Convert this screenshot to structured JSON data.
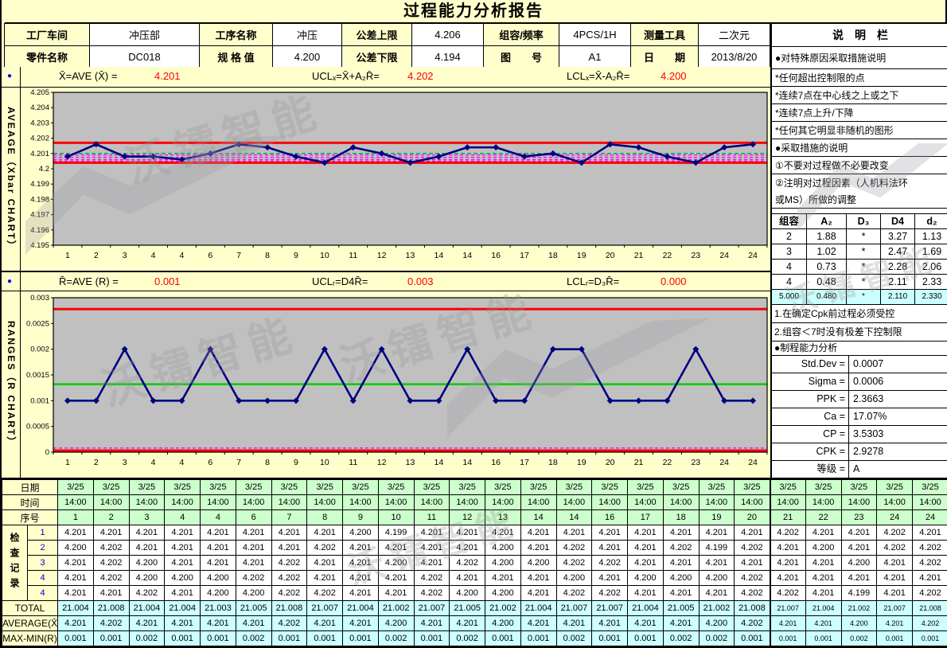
{
  "title": "过程能力分析报告",
  "watermark_text": "沃镭智能",
  "colors": {
    "accent_red": "#FF0000",
    "header_label_bg": "#FFFFCC",
    "green_row_bg": "#CCFFCC",
    "cyan_row_bg": "#CCFFFF",
    "plot_bg": "#C0C0C0",
    "series_blue": "#000080"
  },
  "header": {
    "rows": [
      [
        {
          "label": "工厂车间",
          "value": "冲压部"
        },
        {
          "label": "工序名称",
          "value": "冲压"
        },
        {
          "label": "公差上限",
          "value": "4.206"
        },
        {
          "label": "组容/频率",
          "value": "4PCS/1H"
        },
        {
          "label": "测量工具",
          "value": "二次元"
        }
      ],
      [
        {
          "label": "零件名称",
          "value": "DC018"
        },
        {
          "label": "规 格 值",
          "value": "4.200"
        },
        {
          "label": "公差下限",
          "value": "4.194"
        },
        {
          "label": "图　　号",
          "value": "A1"
        },
        {
          "label": "日　　期",
          "value": "2013/8/20"
        }
      ]
    ]
  },
  "xbar_stats": {
    "bullet": "●",
    "items": [
      {
        "label": "X̄=AVE (X̄) =",
        "value": "4.201"
      },
      {
        "label": "UCLₓ=X̄+A₂R̄=",
        "value": "4.202"
      },
      {
        "label": "LCLₓ=X̄-A₂R̄=",
        "value": "4.200"
      }
    ]
  },
  "r_stats": {
    "bullet": "●",
    "items": [
      {
        "label": "R̄=AVE (R) =",
        "value": "0.001"
      },
      {
        "label": "UCLᵣ=D4R̄=",
        "value": "0.003"
      },
      {
        "label": "LCLᵣ=D₃R̄=",
        "value": "0.000"
      }
    ]
  },
  "chart_data": [
    {
      "type": "line",
      "name": "xbar-chart",
      "side_label": "AVEAGE（Xbar CHART）",
      "x_labels": [
        "1",
        "2",
        "3",
        "4",
        "4",
        "6",
        "7",
        "8",
        "9",
        "10",
        "11",
        "12",
        "13",
        "14",
        "14",
        "16",
        "17",
        "18",
        "19",
        "20",
        "21",
        "22",
        "23",
        "24",
        "24"
      ],
      "values": [
        4.2008,
        4.2016,
        4.2008,
        4.2008,
        4.2006,
        4.201,
        4.2016,
        4.2014,
        4.2008,
        4.2004,
        4.2014,
        4.201,
        4.2004,
        4.2008,
        4.2014,
        4.2014,
        4.2008,
        4.201,
        4.2004,
        4.2016,
        4.2014,
        4.2008,
        4.2004,
        4.2014,
        4.2016
      ],
      "ylim": [
        4.195,
        4.205
      ],
      "ytick_labels": [
        "4.205",
        "4.204",
        "4.203",
        "4.202",
        "4.201",
        "4.2",
        "4.199",
        "4.198",
        "4.197",
        "4.196",
        "4.195"
      ],
      "ucl_line": 4.2017,
      "lcl_line": 4.2004,
      "center_line": 4.201,
      "center_dashed": true,
      "zone_lines": [
        4.2009,
        4.20075,
        4.2006,
        4.2005
      ],
      "legend": "none",
      "grid": "off",
      "colors": {
        "line": "#000080",
        "limit": "#FF0000",
        "center": "#00B050",
        "zone": "#FF00FF",
        "plot_bg": "#C0C0C0"
      }
    },
    {
      "type": "line",
      "name": "r-chart",
      "side_label": "RANGES（R CHART）",
      "x_labels": [
        "1",
        "2",
        "3",
        "4",
        "4",
        "6",
        "7",
        "8",
        "9",
        "10",
        "11",
        "12",
        "13",
        "14",
        "14",
        "16",
        "17",
        "18",
        "19",
        "20",
        "21",
        "22",
        "23",
        "24",
        "24"
      ],
      "values": [
        0.001,
        0.001,
        0.002,
        0.001,
        0.001,
        0.002,
        0.001,
        0.001,
        0.001,
        0.002,
        0.001,
        0.002,
        0.001,
        0.001,
        0.002,
        0.001,
        0.001,
        0.002,
        0.002,
        0.001,
        0.001,
        0.001,
        0.002,
        0.001,
        0.001
      ],
      "ylim": [
        0,
        0.003
      ],
      "ytick_labels": [
        "0.003",
        "0.0025",
        "0.002",
        "0.0015",
        "0.001",
        "0.0005",
        "0"
      ],
      "ucl_line": 0.00278,
      "lcl_line": 3e-05,
      "center_line": 0.00132,
      "center_dashed": false,
      "zone_lines": [
        8e-05
      ],
      "legend": "none",
      "grid": "off",
      "colors": {
        "line": "#000080",
        "limit": "#FF0000",
        "center": "#00D000",
        "zone": "#FF00FF",
        "plot_bg": "#C0C0C0"
      }
    }
  ],
  "sidebar": {
    "title": "说　明　栏",
    "notes": [
      "●对特殊原因采取措施说明",
      "*任何超出控制限的点",
      "*连续7点在中心线之上或之下",
      "*连续7点上升/下降",
      "*任何其它明显非随机的图形",
      "●采取措施的说明",
      "①不要对过程做不必要改变",
      "②注明对过程因素（人机料法环",
      "或MS）所做的调整"
    ],
    "constants_table": {
      "headers": [
        "组容",
        "A₂",
        "D₃",
        "D4",
        "d₂"
      ],
      "rows": [
        [
          "2",
          "1.88",
          "*",
          "3.27",
          "1.13"
        ],
        [
          "3",
          "1.02",
          "*",
          "2.47",
          "1.69"
        ],
        [
          "4",
          "0.73",
          "*",
          "2.28",
          "2.06"
        ],
        [
          "4",
          "0.48",
          "*",
          "2.11",
          "2.33"
        ]
      ],
      "selected_row": [
        "5.000",
        "0.480",
        "*",
        "2.110",
        "2.330"
      ]
    },
    "cpk_notes": [
      "1.在确定Cpk前过程必须受控",
      "2.组容＜7时没有极差下控制限"
    ],
    "capability": {
      "title": "●制程能力分析",
      "rows": [
        {
          "label": "Std.Dev =",
          "value": "0.0007"
        },
        {
          "label": "Sigma =",
          "value": "0.0006"
        },
        {
          "label": "PPK =",
          "value": "2.3663"
        },
        {
          "label": "Ca =",
          "value": "17.07%"
        },
        {
          "label": "CP =",
          "value": "3.5303"
        },
        {
          "label": "CPK =",
          "value": "2.9278"
        },
        {
          "label": "等级 =",
          "value": "A"
        }
      ]
    }
  },
  "bottom_table": {
    "row_labels": {
      "date": "日期",
      "time": "时间",
      "seq": "序号",
      "check": "检查记录",
      "total": "TOTAL",
      "average": "AVERAGE(X̄)",
      "range": "MAX-MIN(R)"
    },
    "dates": [
      "3/25",
      "3/25",
      "3/25",
      "3/25",
      "3/25",
      "3/25",
      "3/25",
      "3/25",
      "3/25",
      "3/25",
      "3/25",
      "3/25",
      "3/25",
      "3/25",
      "3/25",
      "3/25",
      "3/25",
      "3/25",
      "3/25",
      "3/25",
      "3/25",
      "3/25",
      "3/25",
      "3/25",
      "3/25"
    ],
    "times": [
      "14:00",
      "14:00",
      "14:00",
      "14:00",
      "14:00",
      "14:00",
      "14:00",
      "14:00",
      "14:00",
      "14:00",
      "14:00",
      "14:00",
      "14:00",
      "14:00",
      "14:00",
      "14:00",
      "14:00",
      "14:00",
      "14:00",
      "14:00",
      "14:00",
      "14:00",
      "14:00",
      "14:00",
      "14:00"
    ],
    "seq": [
      "1",
      "2",
      "3",
      "4",
      "4",
      "6",
      "7",
      "8",
      "9",
      "10",
      "11",
      "12",
      "13",
      "14",
      "14",
      "16",
      "17",
      "18",
      "19",
      "20",
      "21",
      "22",
      "23",
      "24",
      "24"
    ],
    "check_rows": [
      {
        "label": "1",
        "values": [
          "4.201",
          "4.201",
          "4.201",
          "4.201",
          "4.201",
          "4.201",
          "4.201",
          "4.201",
          "4.200",
          "4.199",
          "4.201",
          "4.201",
          "4.201",
          "4.201",
          "4.201",
          "4.201",
          "4.201",
          "4.201",
          "4.201",
          "4.201",
          "4.202",
          "4.201",
          "4.201",
          "4.202",
          "4.201"
        ]
      },
      {
        "label": "2",
        "values": [
          "4.200",
          "4.202",
          "4.201",
          "4.201",
          "4.201",
          "4.201",
          "4.201",
          "4.202",
          "4.201",
          "4.201",
          "4.201",
          "4.201",
          "4.200",
          "4.201",
          "4.202",
          "4.201",
          "4.201",
          "4.202",
          "4.199",
          "4.202",
          "4.201",
          "4.200",
          "4.201",
          "4.202",
          "4.202"
        ]
      },
      {
        "label": "3",
        "values": [
          "4.201",
          "4.202",
          "4.200",
          "4.201",
          "4.201",
          "4.201",
          "4.202",
          "4.201",
          "4.201",
          "4.200",
          "4.201",
          "4.202",
          "4.200",
          "4.200",
          "4.202",
          "4.202",
          "4.201",
          "4.201",
          "4.201",
          "4.201",
          "4.201",
          "4.201",
          "4.200",
          "4.201",
          "4.202"
        ]
      },
      {
        "label": "4",
        "values": [
          "4.201",
          "4.202",
          "4.200",
          "4.200",
          "4.200",
          "4.202",
          "4.202",
          "4.201",
          "4.201",
          "4.201",
          "4.202",
          "4.201",
          "4.201",
          "4.201",
          "4.200",
          "4.201",
          "4.200",
          "4.200",
          "4.200",
          "4.202",
          "4.201",
          "4.201",
          "4.201",
          "4.201",
          "4.201"
        ]
      },
      {
        "label": "4",
        "values": [
          "4.201",
          "4.201",
          "4.202",
          "4.201",
          "4.200",
          "4.200",
          "4.202",
          "4.202",
          "4.201",
          "4.201",
          "4.202",
          "4.200",
          "4.200",
          "4.201",
          "4.202",
          "4.202",
          "4.201",
          "4.201",
          "4.201",
          "4.202",
          "4.202",
          "4.201",
          "4.199",
          "4.201",
          "4.202"
        ]
      }
    ],
    "total": [
      "21.004",
      "21.008",
      "21.004",
      "21.004",
      "21.003",
      "21.005",
      "21.008",
      "21.007",
      "21.004",
      "21.002",
      "21.007",
      "21.005",
      "21.002",
      "21.004",
      "21.007",
      "21.007",
      "21.004",
      "21.005",
      "21.002",
      "21.008",
      "21.007",
      "21.004",
      "21.002",
      "21.007",
      "21.008"
    ],
    "average": [
      "4.201",
      "4.202",
      "4.201",
      "4.201",
      "4.201",
      "4.201",
      "4.202",
      "4.201",
      "4.201",
      "4.200",
      "4.201",
      "4.201",
      "4.200",
      "4.201",
      "4.201",
      "4.201",
      "4.201",
      "4.201",
      "4.200",
      "4.202",
      "4.201",
      "4.201",
      "4.200",
      "4.201",
      "4.202"
    ],
    "range": [
      "0.001",
      "0.001",
      "0.002",
      "0.001",
      "0.001",
      "0.002",
      "0.001",
      "0.001",
      "0.001",
      "0.002",
      "0.001",
      "0.002",
      "0.001",
      "0.001",
      "0.002",
      "0.001",
      "0.001",
      "0.002",
      "0.002",
      "0.001",
      "0.001",
      "0.001",
      "0.002",
      "0.001",
      "0.001"
    ]
  }
}
